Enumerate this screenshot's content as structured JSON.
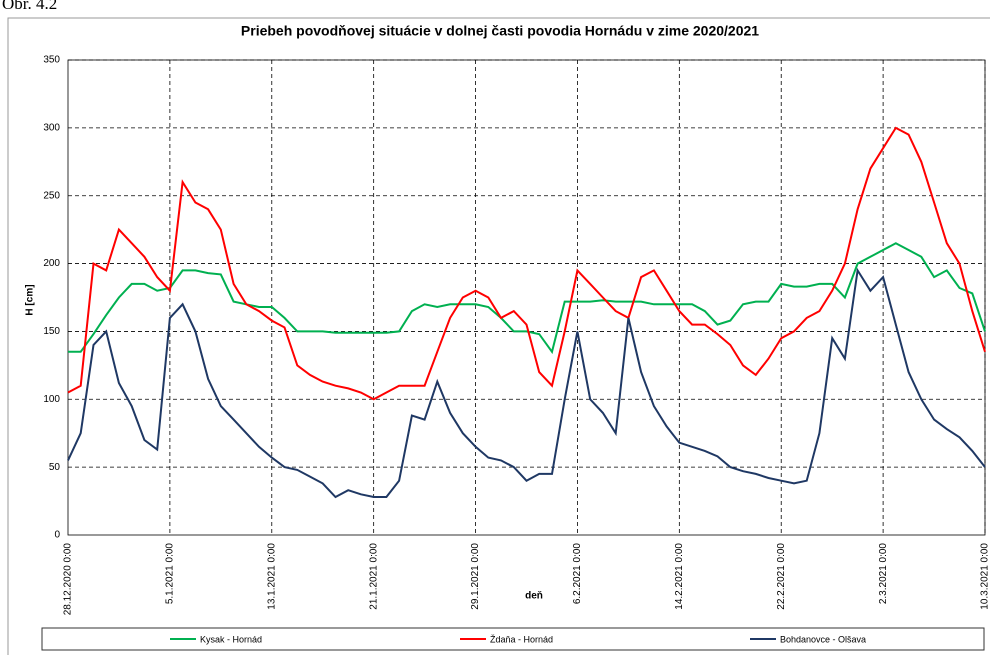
{
  "caption": "Obr. 4.2",
  "chart_data": {
    "type": "line",
    "title": "Priebeh povodňovej situácie v dolnej časti povodia Hornádu v zime 2020/2021",
    "x_label": "deň",
    "y_label": "H [cm]",
    "grid": true,
    "legend": "bottom",
    "x": [
      "28.12.2020 0:00",
      "29.12.2020 0:00",
      "30.12.2020 0:00",
      "31.12.2020 0:00",
      "1.1.2021 0:00",
      "2.1.2021 0:00",
      "3.1.2021 0:00",
      "4.1.2021 0:00",
      "5.1.2021 0:00",
      "6.1.2021 0:00",
      "7.1.2021 0:00",
      "8.1.2021 0:00",
      "9.1.2021 0:00",
      "10.1.2021 0:00",
      "11.1.2021 0:00",
      "12.1.2021 0:00",
      "13.1.2021 0:00",
      "14.1.2021 0:00",
      "15.1.2021 0:00",
      "16.1.2021 0:00",
      "17.1.2021 0:00",
      "18.1.2021 0:00",
      "19.1.2021 0:00",
      "20.1.2021 0:00",
      "21.1.2021 0:00",
      "22.1.2021 0:00",
      "23.1.2021 0:00",
      "24.1.2021 0:00",
      "25.1.2021 0:00",
      "26.1.2021 0:00",
      "27.1.2021 0:00",
      "28.1.2021 0:00",
      "29.1.2021 0:00",
      "30.1.2021 0:00",
      "31.1.2021 0:00",
      "1.2.2021 0:00",
      "2.2.2021 0:00",
      "3.2.2021 0:00",
      "4.2.2021 0:00",
      "5.2.2021 0:00",
      "6.2.2021 0:00",
      "7.2.2021 0:00",
      "8.2.2021 0:00",
      "9.2.2021 0:00",
      "10.2.2021 0:00",
      "11.2.2021 0:00",
      "12.2.2021 0:00",
      "13.2.2021 0:00",
      "14.2.2021 0:00",
      "15.2.2021 0:00",
      "16.2.2021 0:00",
      "17.2.2021 0:00",
      "18.2.2021 0:00",
      "19.2.2021 0:00",
      "20.2.2021 0:00",
      "21.2.2021 0:00",
      "22.2.2021 0:00",
      "23.2.2021 0:00",
      "24.2.2021 0:00",
      "25.2.2021 0:00",
      "26.2.2021 0:00",
      "27.2.2021 0:00",
      "28.2.2021 0:00",
      "1.3.2021 0:00",
      "2.3.2021 0:00",
      "3.3.2021 0:00",
      "4.3.2021 0:00",
      "5.3.2021 0:00",
      "6.3.2021 0:00",
      "7.3.2021 0:00",
      "8.3.2021 0:00",
      "9.3.2021 0:00",
      "10.3.2021 0:00"
    ],
    "xlim": [
      "28.12.2020 0:00",
      "10.3.2021 0:00"
    ],
    "xticks": [
      "28.12.2020 0:00",
      "5.1.2021 0:00",
      "13.1.2021 0:00",
      "21.1.2021 0:00",
      "29.1.2021 0:00",
      "6.2.2021 0:00",
      "14.2.2021 0:00",
      "22.2.2021 0:00",
      "2.3.2021 0:00",
      "10.3.2021 0:00"
    ],
    "ylim": [
      0,
      350
    ],
    "yticks": [
      0,
      50,
      100,
      150,
      200,
      250,
      300,
      350
    ],
    "series": [
      {
        "name": "Kysak - Hornád",
        "color": "#00b050",
        "values": [
          135,
          135,
          148,
          162,
          175,
          185,
          185,
          180,
          182,
          195,
          195,
          193,
          192,
          172,
          170,
          168,
          168,
          160,
          150,
          150,
          150,
          149,
          149,
          149,
          149,
          149,
          150,
          165,
          170,
          168,
          170,
          170,
          170,
          168,
          160,
          150,
          150,
          148,
          135,
          172,
          172,
          172,
          173,
          172,
          172,
          172,
          170,
          170,
          170,
          170,
          165,
          155,
          158,
          170,
          172,
          172,
          185,
          183,
          183,
          185,
          185,
          175,
          200,
          205,
          210,
          215,
          210,
          205,
          190,
          195,
          182,
          178,
          150
        ]
      },
      {
        "name": "Ždaňa - Hornád",
        "color": "#ff0000",
        "values": [
          105,
          110,
          200,
          195,
          225,
          215,
          205,
          190,
          180,
          260,
          245,
          240,
          225,
          185,
          170,
          165,
          158,
          153,
          125,
          118,
          113,
          110,
          108,
          105,
          100,
          105,
          110,
          110,
          110,
          135,
          160,
          175,
          180,
          175,
          160,
          165,
          155,
          120,
          110,
          150,
          195,
          185,
          175,
          165,
          160,
          190,
          195,
          180,
          165,
          155,
          155,
          148,
          140,
          125,
          118,
          130,
          145,
          150,
          160,
          165,
          180,
          200,
          240,
          270,
          285,
          300,
          295,
          275,
          245,
          215,
          200,
          165,
          135
        ]
      },
      {
        "name": "Bohdanovce - Olšava",
        "color": "#1f3864",
        "values": [
          55,
          75,
          140,
          150,
          112,
          95,
          70,
          63,
          160,
          170,
          150,
          115,
          95,
          85,
          75,
          65,
          57,
          50,
          48,
          43,
          38,
          28,
          33,
          30,
          28,
          28,
          40,
          88,
          85,
          113,
          90,
          75,
          65,
          57,
          55,
          50,
          40,
          45,
          45,
          100,
          150,
          100,
          90,
          75,
          160,
          120,
          95,
          80,
          68,
          65,
          62,
          58,
          50,
          47,
          45,
          42,
          40,
          38,
          40,
          75,
          145,
          130,
          195,
          180,
          190,
          155,
          120,
          100,
          85,
          78,
          72,
          62,
          50
        ]
      }
    ]
  }
}
